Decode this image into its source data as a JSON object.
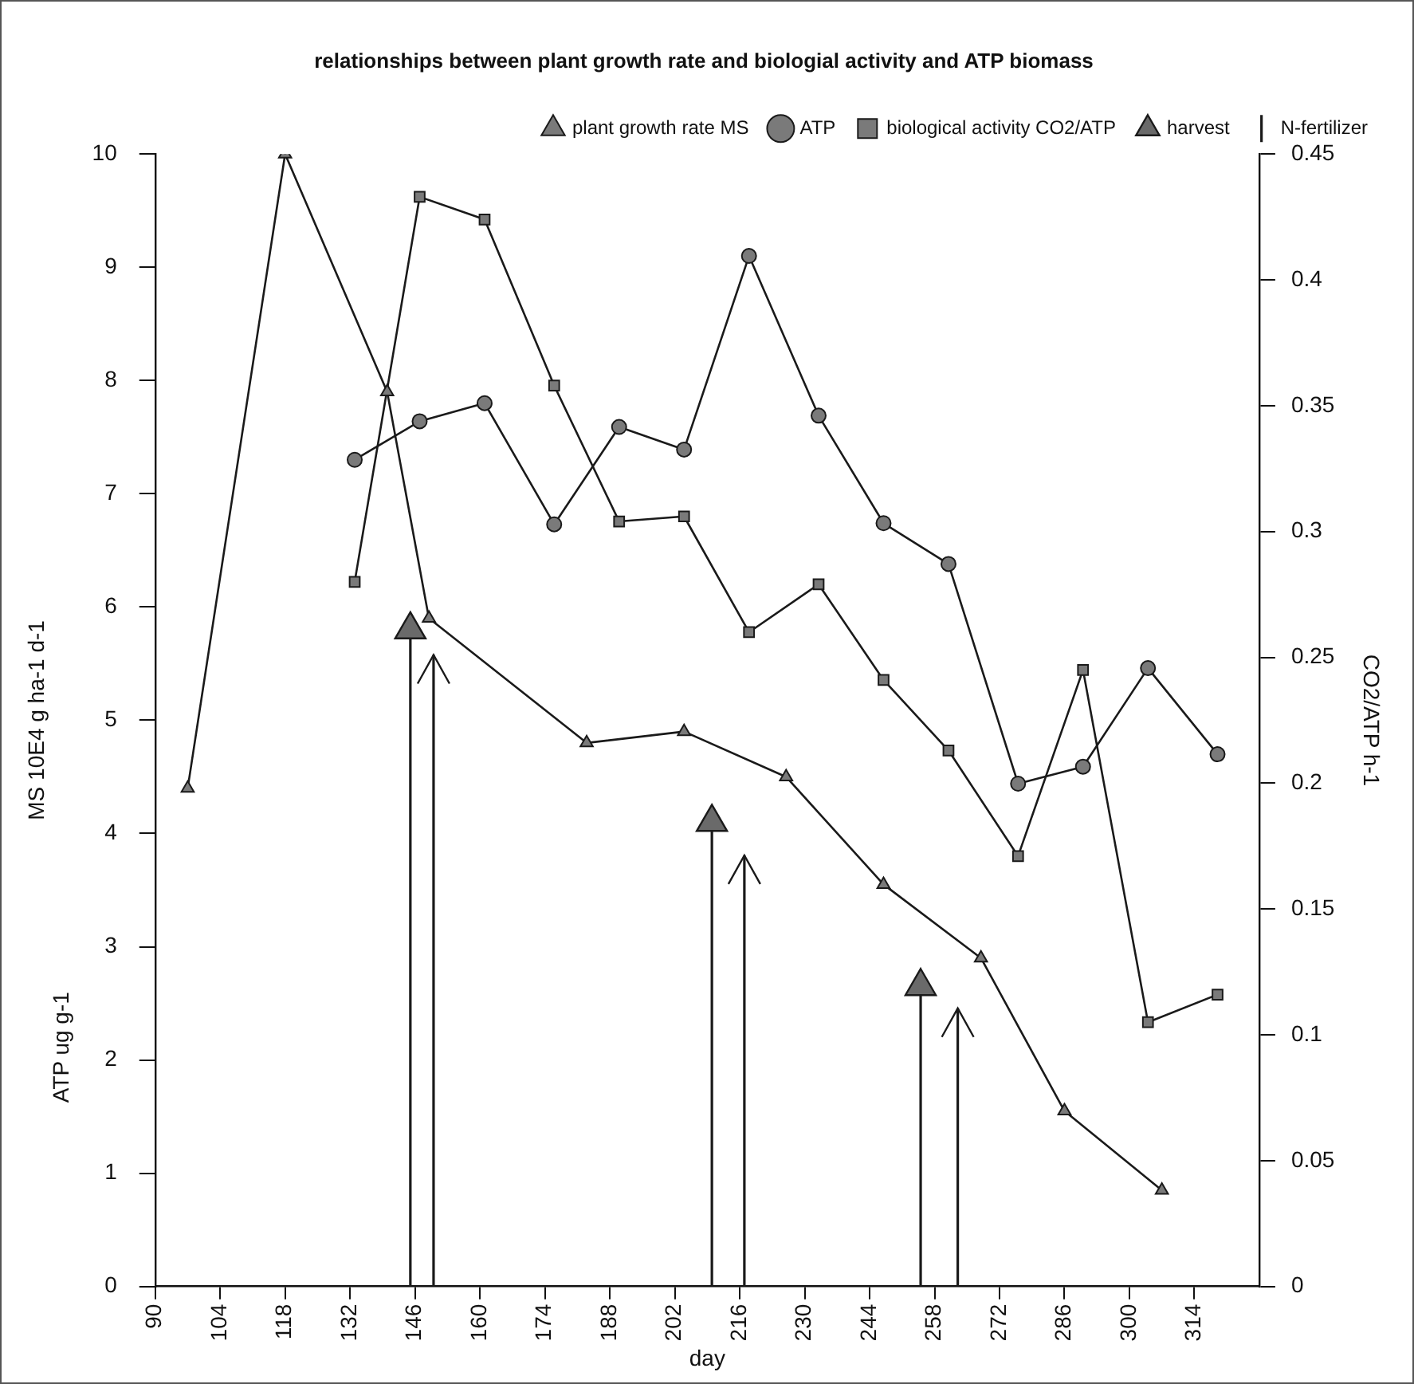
{
  "chart_data": {
    "type": "line",
    "title": "relationships between plant growth rate and biologial activity and ATP biomass",
    "xlabel": "day",
    "ylabel": "MS 10E4 g ha-1 d-1",
    "y2label": "CO2/ATP h-1",
    "annotations": [
      "ATP ug g-1"
    ],
    "xlim": [
      90,
      328
    ],
    "xticks": [
      90,
      104,
      118,
      132,
      146,
      160,
      174,
      188,
      202,
      216,
      230,
      244,
      258,
      272,
      286,
      300,
      314
    ],
    "ylim": [
      0,
      10
    ],
    "yticks": [
      0,
      1,
      2,
      3,
      4,
      5,
      6,
      7,
      8,
      9,
      10
    ],
    "y2lim": [
      0,
      0.45
    ],
    "y2ticks": [
      0,
      0.05,
      0.1,
      0.15,
      0.2,
      0.25,
      0.3,
      0.35,
      0.4,
      0.45
    ],
    "grid": false,
    "legend": "top right",
    "line_style": "solid",
    "series": [
      {
        "name": "plant growth rate MS",
        "type": "line",
        "marker": "triangle",
        "color": "#1a1a1a",
        "x": [
          97,
          118,
          140,
          149,
          183,
          204,
          226,
          247,
          268,
          286,
          307
        ],
        "values": [
          4.4,
          10,
          7.9,
          5.9,
          4.8,
          4.9,
          4.5,
          3.55,
          2.9,
          1.55,
          0.85
        ]
      },
      {
        "name": "ATP",
        "type": "line",
        "marker": "circle",
        "color": "#1a1a1a",
        "x": [
          133,
          147,
          161,
          176,
          190,
          204,
          218,
          233,
          247,
          261,
          276,
          290,
          304,
          319
        ],
        "values": [
          7.3,
          7.64,
          7.8,
          6.73,
          7.59,
          7.39,
          9.1,
          7.69,
          6.74,
          6.38,
          4.44,
          4.59,
          5.46,
          4.7
        ]
      },
      {
        "name": "biological activity CO2/ATP",
        "type": "line",
        "marker": "square",
        "axis": "y2",
        "color": "#1a1a1a",
        "x": [
          133,
          147,
          161,
          176,
          190,
          204,
          218,
          233,
          247,
          261,
          276,
          290,
          304,
          319
        ],
        "values": [
          0.28,
          0.433,
          0.424,
          0.358,
          0.304,
          0.306,
          0.26,
          0.279,
          0.241,
          0.213,
          0.171,
          0.245,
          0.105,
          0.116
        ]
      },
      {
        "name": "harvest",
        "type": "lollipop",
        "marker": "triangle",
        "color": "#1a1a1a",
        "x": [
          145,
          210,
          255
        ],
        "values": [
          5.8,
          4.1,
          2.65
        ]
      },
      {
        "name": "N-fertilizer",
        "type": "lollipop",
        "color": "#1a1a1a",
        "x": [
          150,
          217,
          263
        ],
        "values": [
          5.45,
          3.68,
          2.33
        ]
      }
    ]
  }
}
